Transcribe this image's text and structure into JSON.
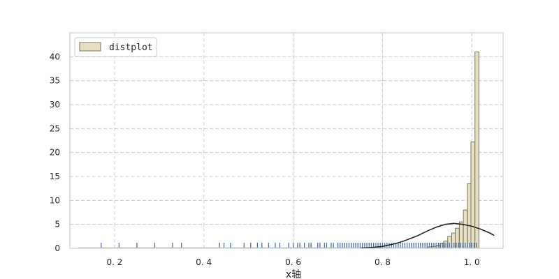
{
  "chart_data": {
    "type": "bar",
    "xlabel": "x轴",
    "ylabel": "",
    "xlim": [
      0.1,
      1.07
    ],
    "ylim": [
      0,
      45
    ],
    "grid": true,
    "legend": {
      "placement": "top-left",
      "label": "distplot"
    },
    "x_ticks": [
      {
        "value": 0.2,
        "label": "0. 2"
      },
      {
        "value": 0.4,
        "label": "0. 4"
      },
      {
        "value": 0.6,
        "label": "0. 6"
      },
      {
        "value": 0.8,
        "label": "0. 8"
      },
      {
        "value": 1.0,
        "label": "1. 0"
      }
    ],
    "y_ticks": [
      0,
      5,
      10,
      15,
      20,
      25,
      30,
      35,
      40
    ],
    "histogram": {
      "series_name": "distplot",
      "bin_width": 0.00875,
      "bins": [
        {
          "x0": 0.902,
          "height": 0.3
        },
        {
          "x0": 0.911,
          "height": 0.4
        },
        {
          "x0": 0.92,
          "height": 0.6
        },
        {
          "x0": 0.928,
          "height": 1.0
        },
        {
          "x0": 0.937,
          "height": 1.5
        },
        {
          "x0": 0.946,
          "height": 2.5
        },
        {
          "x0": 0.955,
          "height": 3.2
        },
        {
          "x0": 0.963,
          "height": 4.2
        },
        {
          "x0": 0.972,
          "height": 5.5
        },
        {
          "x0": 0.981,
          "height": 8.0
        },
        {
          "x0": 0.99,
          "height": 13.5
        },
        {
          "x0": 0.998,
          "height": 22.2
        },
        {
          "x0": 1.007,
          "height": 41.0
        }
      ]
    },
    "kde_curve": {
      "x": [
        0.75,
        0.78,
        0.8,
        0.83,
        0.85,
        0.88,
        0.9,
        0.92,
        0.94,
        0.96,
        0.98,
        1.0,
        1.02,
        1.04,
        1.05
      ],
      "y": [
        0.05,
        0.2,
        0.4,
        1.0,
        1.6,
        2.7,
        3.6,
        4.4,
        5.0,
        5.2,
        5.0,
        4.6,
        4.0,
        3.2,
        2.7
      ]
    },
    "rug_values": [
      0.17,
      0.21,
      0.25,
      0.29,
      0.33,
      0.35,
      0.435,
      0.445,
      0.46,
      0.49,
      0.505,
      0.52,
      0.53,
      0.545,
      0.56,
      0.57,
      0.59,
      0.6,
      0.61,
      0.615,
      0.625,
      0.635,
      0.64,
      0.655,
      0.66,
      0.67,
      0.675,
      0.685,
      0.69,
      0.7,
      0.705,
      0.71,
      0.715,
      0.72,
      0.725,
      0.73,
      0.735,
      0.74,
      0.745,
      0.75,
      0.755,
      0.76,
      0.765,
      0.77,
      0.775,
      0.78,
      0.785,
      0.79,
      0.795,
      0.8,
      0.805,
      0.81,
      0.815,
      0.82,
      0.825,
      0.83,
      0.835,
      0.84,
      0.845,
      0.85,
      0.855,
      0.86,
      0.865,
      0.87,
      0.875,
      0.88,
      0.885,
      0.89,
      0.895,
      0.9,
      0.905,
      0.91,
      0.915,
      0.92,
      0.925,
      0.93,
      0.935,
      0.94,
      0.945,
      0.95,
      0.955,
      0.96,
      0.965,
      0.97,
      0.975,
      0.98,
      0.985,
      0.99,
      0.995,
      1.0,
      1.005,
      1.01
    ],
    "colors": {
      "bar_fill": "#e6dfc1",
      "bar_edge": "#7a7560",
      "kde_line": "#262626",
      "rug": "#4c72b0",
      "grid": "#cccccc",
      "frame": "#cccccc"
    }
  }
}
